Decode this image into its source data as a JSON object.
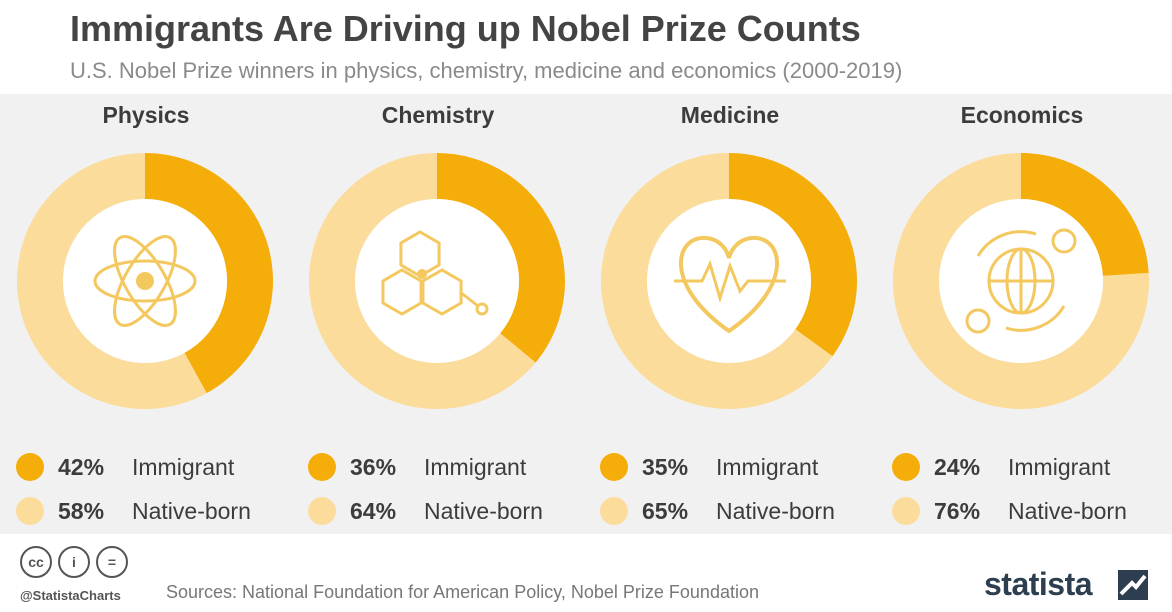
{
  "header": {
    "title": "Immigrants Are Driving up Nobel Prize Counts",
    "subtitle": "U.S. Nobel Prize winners in physics, chemistry, medicine and economics (2000-2019)"
  },
  "colors": {
    "immigrant": "#f5ad0a",
    "native": "#fbdc9b",
    "panel": "#f1f1f1",
    "icon": "#f3c85e"
  },
  "chart_data": [
    {
      "type": "pie",
      "title": "Physics",
      "icon": "atom-icon",
      "series": [
        {
          "name": "Immigrant",
          "value": 42,
          "label": "42%"
        },
        {
          "name": "Native-born",
          "value": 58,
          "label": "58%"
        }
      ]
    },
    {
      "type": "pie",
      "title": "Chemistry",
      "icon": "molecule-icon",
      "series": [
        {
          "name": "Immigrant",
          "value": 36,
          "label": "36%"
        },
        {
          "name": "Native-born",
          "value": 64,
          "label": "64%"
        }
      ]
    },
    {
      "type": "pie",
      "title": "Medicine",
      "icon": "heartbeat-icon",
      "series": [
        {
          "name": "Immigrant",
          "value": 35,
          "label": "35%"
        },
        {
          "name": "Native-born",
          "value": 65,
          "label": "65%"
        }
      ]
    },
    {
      "type": "pie",
      "title": "Economics",
      "icon": "globe-currency-icon",
      "series": [
        {
          "name": "Immigrant",
          "value": 24,
          "label": "24%"
        },
        {
          "name": "Native-born",
          "value": 76,
          "label": "76%"
        }
      ]
    }
  ],
  "footer": {
    "license_icons": [
      "cc-icon",
      "by-icon",
      "nd-icon"
    ],
    "license_glyphs": [
      "cc",
      "i",
      "="
    ],
    "handle": "@StatistaCharts",
    "sources": "Sources: National Foundation for American Policy, Nobel Prize Foundation",
    "brand": "statista"
  }
}
